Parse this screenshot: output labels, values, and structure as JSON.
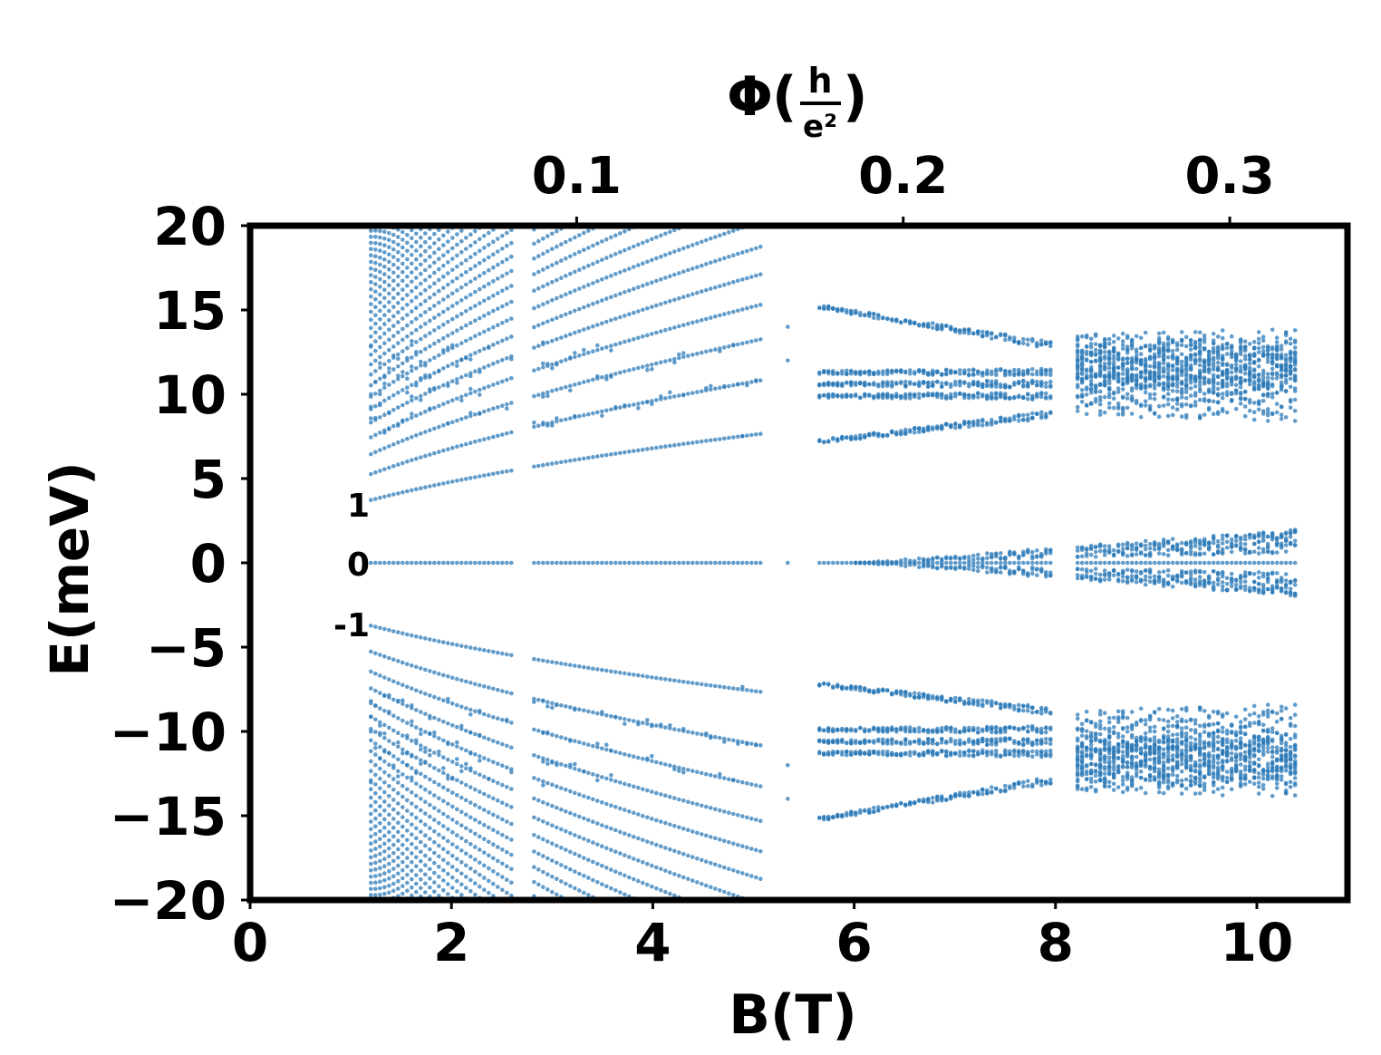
{
  "chart_data": {
    "type": "scatter",
    "title": "",
    "xlabel": "B(T)",
    "ylabel": "E(meV)",
    "xlim": [
      0,
      10.9
    ],
    "ylim": [
      -20,
      20
    ],
    "x_ticks": [
      0,
      2,
      4,
      6,
      8,
      10
    ],
    "x_tick_labels": [
      "0",
      "2",
      "4",
      "6",
      "8",
      "10"
    ],
    "y_ticks": [
      -20,
      -15,
      -10,
      -5,
      0,
      5,
      10,
      15,
      20
    ],
    "y_tick_labels": [
      "−20",
      "−15",
      "−10",
      "−5",
      "0",
      "5",
      "10",
      "15",
      "20"
    ],
    "top_axis": {
      "label_symbol": "Φ",
      "label_numerator": "h",
      "label_denominator": "e²",
      "ticks_flux": [
        0.1,
        0.2,
        0.3
      ],
      "tick_labels": [
        "0.1",
        "0.2",
        "0.3"
      ],
      "flux_per_tesla": 0.03083
    },
    "annotations": [
      {
        "text": "1",
        "x": 1.05,
        "y": 3.5
      },
      {
        "text": "0",
        "x": 1.05,
        "y": 0.0
      },
      {
        "text": "-1",
        "x": 1.05,
        "y": -3.6
      }
    ],
    "grid": false,
    "legend": "none",
    "marker_color": "#2e7bb8",
    "series": [
      {
        "description_of_model": "Landau-level spectrum: E = ± c * sqrt(n * B) branches splitting into Hofstadter-like bands",
        "zero_mode": {
          "y": 0.0,
          "x_range": [
            1.2,
            10.4
          ]
        },
        "B_range": [
          1.2,
          10.4
        ],
        "gaps_in_B": [
          [
            5.1,
            5.65
          ],
          [
            7.95,
            8.2
          ]
        ],
        "upper_band_center_meV": 10.2,
        "lower_band_center_meV": -10.2,
        "first_level_endpoints_meV": [
          [
            1.25,
            3.8
          ],
          [
            5.1,
            6.7
          ]
        ],
        "outer_level_endpoints_meV": [
          [
            2.8,
            19.8
          ],
          [
            5.1,
            15.6
          ]
        ]
      }
    ]
  }
}
